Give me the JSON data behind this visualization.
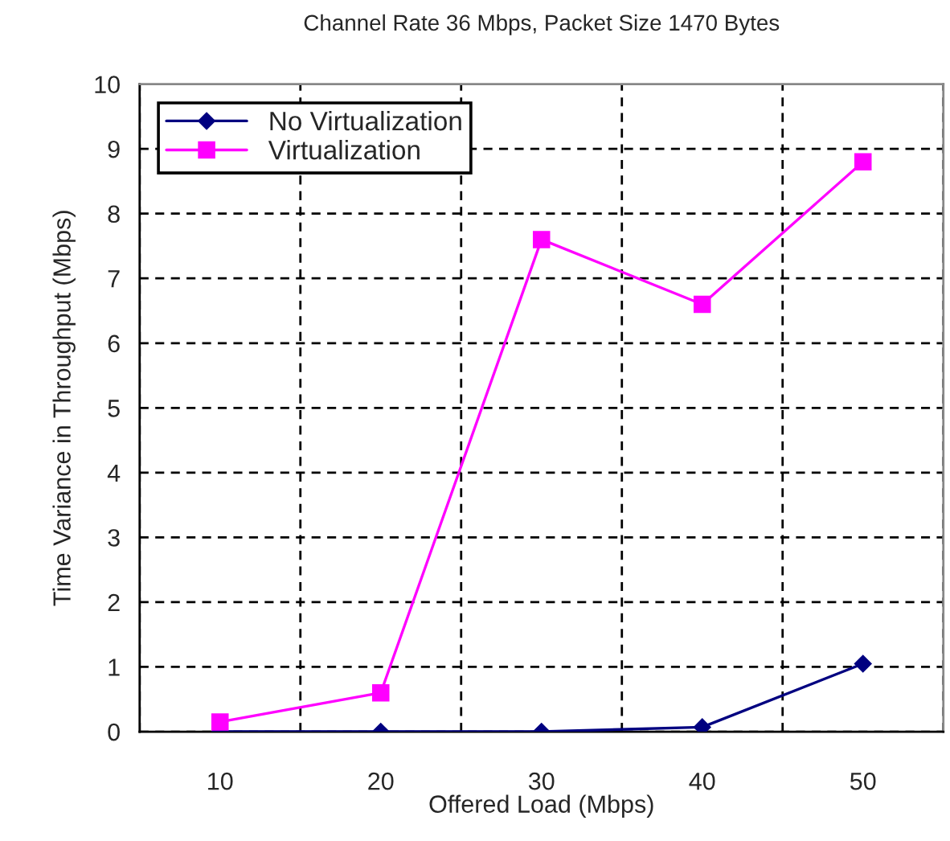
{
  "chart_data": {
    "type": "line",
    "title": "Channel Rate 36 Mbps, Packet Size 1470 Bytes",
    "xlabel": "Offered Load (Mbps)",
    "ylabel": "Time Variance in Throughput (Mbps)",
    "categories": [
      "10",
      "20",
      "30",
      "40",
      "50"
    ],
    "series": [
      {
        "name": "No Virtualization",
        "color": "#000080",
        "marker": "diamond",
        "values": [
          0,
          0,
          0,
          0.07,
          1.05
        ]
      },
      {
        "name": "Virtualization",
        "color": "#ff00ff",
        "marker": "square",
        "values": [
          0.15,
          0.6,
          7.6,
          6.6,
          8.8
        ]
      }
    ],
    "ylim": [
      0,
      10
    ],
    "yticks": [
      0,
      1,
      2,
      3,
      4,
      5,
      6,
      7,
      8,
      9,
      10
    ],
    "grid": true,
    "legend": "top left",
    "line_style": "solid"
  }
}
